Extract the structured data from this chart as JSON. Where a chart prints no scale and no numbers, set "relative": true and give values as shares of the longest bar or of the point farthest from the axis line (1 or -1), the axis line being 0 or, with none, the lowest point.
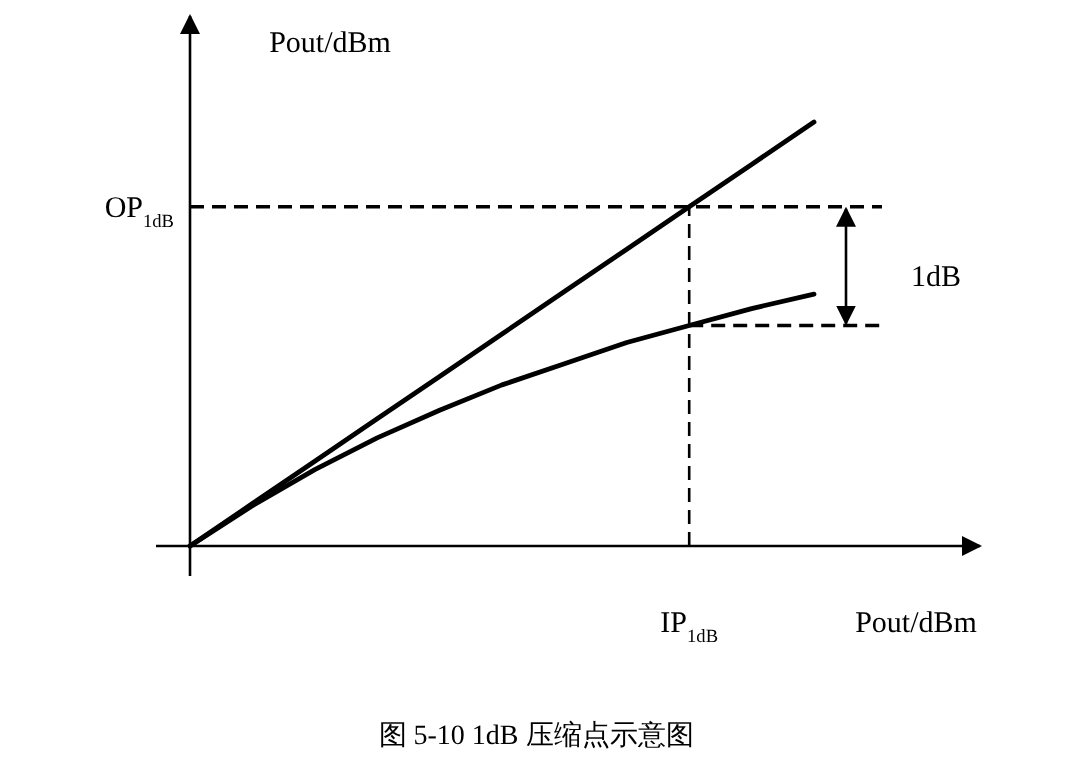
{
  "chart_data": {
    "type": "line",
    "relative": true,
    "xlabel": "Pout/dBm",
    "ylabel": "Pout/dBm",
    "categories": [
      null,
      null,
      null,
      null,
      null,
      null,
      null,
      null,
      null,
      null,
      null
    ],
    "series": [
      {
        "color": "#000000",
        "values": [
          0,
          0.1,
          0.2,
          0.3,
          0.4,
          0.5,
          0.6,
          0.7,
          0.8,
          0.9,
          1
        ]
      },
      {
        "color": "#000000",
        "values": [
          0,
          0.095,
          0.18,
          0.255,
          0.32,
          0.38,
          0.43,
          0.48,
          0.52,
          0.56,
          0.594
        ]
      }
    ],
    "line_style": "solid",
    "ref_lines": [
      {
        "axis": "y",
        "value": 0.8,
        "label": "OP$_{1dB}$",
        "line_style": "dashed",
        "color": "#000000"
      },
      {
        "axis": "y",
        "value": 0.52,
        "line_style": "dashed",
        "color": "#000000"
      }
    ],
    "annotations": [
      "1dB",
      "IP$_{1dB}$",
      "图 5-10 1dB 压缩点示意图"
    ]
  }
}
